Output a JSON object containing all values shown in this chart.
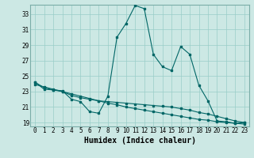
{
  "xlabel": "Humidex (Indice chaleur)",
  "bg_color": "#cce8e4",
  "grid_color": "#99cdc8",
  "line_color": "#006666",
  "xlim": [
    -0.5,
    23.5
  ],
  "ylim": [
    18.5,
    34.2
  ],
  "yticks": [
    19,
    21,
    23,
    25,
    27,
    29,
    31,
    33
  ],
  "xticks": [
    0,
    1,
    2,
    3,
    4,
    5,
    6,
    7,
    8,
    9,
    10,
    11,
    12,
    13,
    14,
    15,
    16,
    17,
    18,
    19,
    20,
    21,
    22,
    23
  ],
  "curve_x": [
    0,
    1,
    2,
    3,
    4,
    5,
    6,
    7,
    8,
    9,
    10,
    11,
    12,
    13,
    14,
    15,
    16,
    17,
    18,
    19,
    20,
    21,
    22,
    23
  ],
  "curve_y": [
    24.2,
    23.3,
    23.2,
    23.1,
    22.0,
    21.7,
    20.4,
    20.2,
    22.4,
    30.0,
    31.8,
    34.1,
    33.7,
    27.8,
    26.2,
    25.7,
    28.8,
    27.8,
    23.8,
    21.8,
    19.2,
    19.1,
    18.9,
    19.0
  ],
  "line1_x": [
    0,
    1,
    2,
    3,
    4,
    5,
    6,
    7,
    8,
    9,
    10,
    11,
    12,
    13,
    14,
    15,
    16,
    17,
    18,
    19,
    20,
    21,
    22,
    23
  ],
  "line1_y": [
    23.9,
    23.6,
    23.3,
    23.0,
    22.7,
    22.4,
    22.1,
    21.8,
    21.5,
    21.3,
    21.0,
    20.8,
    20.6,
    20.4,
    20.2,
    20.0,
    19.8,
    19.6,
    19.4,
    19.3,
    19.1,
    19.0,
    18.9,
    18.8
  ],
  "line2_x": [
    0,
    1,
    2,
    3,
    4,
    5,
    6,
    7,
    8,
    9,
    10,
    11,
    12,
    13,
    14,
    15,
    16,
    17,
    18,
    19,
    20,
    21,
    22,
    23
  ],
  "line2_y": [
    24.2,
    23.5,
    23.2,
    23.0,
    22.5,
    22.2,
    22.0,
    21.8,
    21.7,
    21.6,
    21.5,
    21.4,
    21.3,
    21.2,
    21.1,
    21.0,
    20.8,
    20.6,
    20.3,
    20.1,
    19.8,
    19.5,
    19.2,
    19.0
  ],
  "xlabel_fontsize": 7,
  "tick_fontsize": 5.5
}
